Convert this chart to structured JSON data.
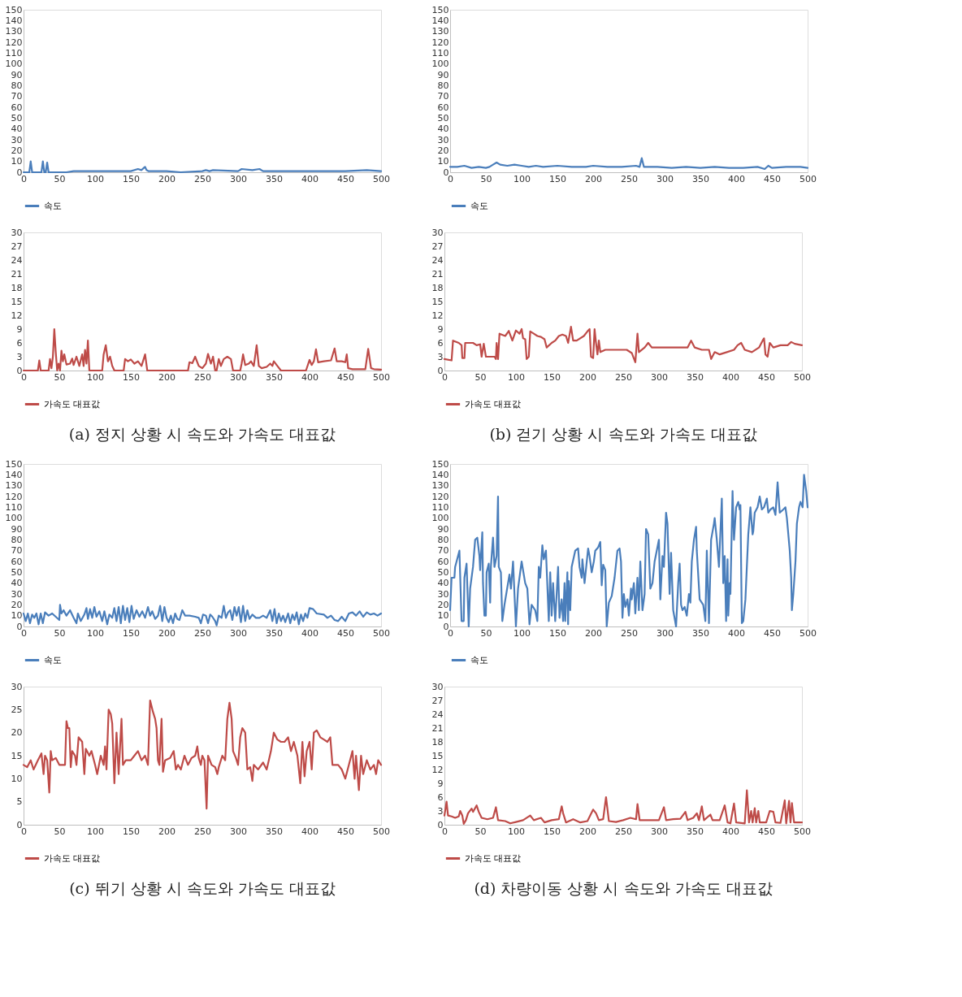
{
  "chart_data": [
    {
      "type": "line",
      "xlim": [
        0,
        500
      ],
      "xticks": [
        0,
        50,
        100,
        150,
        200,
        250,
        300,
        350,
        400,
        450,
        500
      ],
      "ylim": [
        0,
        150
      ],
      "yticks": [
        0,
        10,
        20,
        30,
        40,
        50,
        60,
        70,
        80,
        90,
        100,
        110,
        120,
        130,
        140,
        150
      ],
      "grid": false,
      "legend": "bottom",
      "series": [
        {
          "name": "속도",
          "color": "#4a7ebb",
          "x": [
            0,
            5,
            8,
            10,
            12,
            25,
            27,
            29,
            31,
            33,
            35,
            60,
            70,
            80,
            100,
            120,
            140,
            150,
            160,
            165,
            168,
            170,
            172,
            175,
            200,
            220,
            250,
            255,
            260,
            265,
            300,
            305,
            320,
            330,
            335,
            350,
            380,
            400,
            430,
            450,
            480,
            500
          ],
          "values": [
            0,
            0,
            0,
            10,
            0,
            0,
            10,
            0,
            0,
            9,
            0,
            0,
            1,
            1,
            1,
            1,
            1,
            1,
            3,
            2,
            4,
            5,
            2,
            1,
            1,
            0,
            1,
            2,
            1,
            2,
            1,
            3,
            2,
            3,
            1,
            1,
            1,
            1,
            1,
            1,
            2,
            1
          ]
        }
      ]
    },
    {
      "type": "line",
      "xlim": [
        0,
        500
      ],
      "xticks": [
        0,
        50,
        100,
        150,
        200,
        250,
        300,
        350,
        400,
        450,
        500
      ],
      "ylim": [
        0,
        30
      ],
      "yticks": [
        0,
        3,
        6,
        9,
        12,
        15,
        18,
        21,
        24,
        27,
        30
      ],
      "grid": false,
      "legend": "bottom",
      "annotations": [
        "(a) 정지 상황 시 속도와 가속도 대표값"
      ],
      "series": [
        {
          "name": "가속도 대표값",
          "color": "#be4b48",
          "x": [
            0,
            20,
            22,
            24,
            35,
            37,
            39,
            41,
            43,
            45,
            47,
            49,
            51,
            53,
            55,
            57,
            60,
            65,
            68,
            70,
            74,
            78,
            82,
            84,
            86,
            88,
            90,
            92,
            110,
            112,
            115,
            118,
            121,
            124,
            127,
            140,
            142,
            146,
            150,
            155,
            160,
            165,
            170,
            173,
            230,
            232,
            236,
            240,
            245,
            250,
            255,
            258,
            262,
            265,
            268,
            270,
            273,
            276,
            280,
            285,
            290,
            293,
            303,
            305,
            307,
            310,
            315,
            318,
            322,
            326,
            329,
            333,
            340,
            345,
            348,
            350,
            355,
            360,
            395,
            400,
            403,
            406,
            409,
            412,
            420,
            430,
            435,
            438,
            445,
            450,
            452,
            454,
            460,
            470,
            478,
            482,
            486,
            490,
            500
          ],
          "values": [
            0,
            0,
            2.2,
            0,
            0,
            2.5,
            0.5,
            3,
            9,
            4,
            0,
            1.5,
            0,
            4.3,
            2,
            3.5,
            1.3,
            1.5,
            2.6,
            1.2,
            3,
            1,
            3.5,
            1,
            4.5,
            1.5,
            6.5,
            0,
            0,
            3.5,
            5.5,
            2,
            3,
            1,
            0,
            0,
            2.5,
            2,
            2.4,
            1.5,
            2,
            1,
            3.5,
            0,
            0,
            1.8,
            1.6,
            3,
            1,
            0.5,
            1.5,
            3.6,
            1.5,
            3,
            0,
            0,
            2.5,
            1,
            2.5,
            3,
            2.5,
            0,
            0,
            1.5,
            3.5,
            1.2,
            1.5,
            2,
            1,
            5.5,
            1,
            0.5,
            0.8,
            1.5,
            1,
            2,
            1,
            0,
            0,
            2.3,
            1.2,
            2,
            4.6,
            1.8,
            2,
            2.2,
            4.8,
            2,
            2,
            1.8,
            3.5,
            0.5,
            0.3,
            0.3,
            0.3,
            4.7,
            0.5,
            0.3,
            0.2
          ]
        }
      ]
    },
    {
      "type": "line",
      "xlim": [
        0,
        500
      ],
      "xticks": [
        0,
        50,
        100,
        150,
        200,
        250,
        300,
        350,
        400,
        450,
        500
      ],
      "ylim": [
        0,
        150
      ],
      "yticks": [
        0,
        10,
        20,
        30,
        40,
        50,
        60,
        70,
        80,
        90,
        100,
        110,
        120,
        130,
        140,
        150
      ],
      "grid": false,
      "legend": "bottom",
      "series": [
        {
          "name": "속도",
          "color": "#4a7ebb",
          "x": [
            0,
            10,
            20,
            30,
            40,
            50,
            55,
            60,
            65,
            70,
            80,
            90,
            100,
            110,
            120,
            130,
            150,
            170,
            190,
            200,
            220,
            240,
            260,
            265,
            268,
            271,
            290,
            310,
            330,
            350,
            370,
            390,
            410,
            430,
            440,
            445,
            450,
            470,
            490,
            500
          ],
          "values": [
            5,
            5,
            6,
            4,
            5,
            4,
            5,
            7,
            9,
            7,
            6,
            7,
            6,
            5,
            6,
            5,
            6,
            5,
            5,
            6,
            5,
            5,
            6,
            5,
            13,
            5,
            5,
            4,
            5,
            4,
            5,
            4,
            4,
            5,
            3,
            6,
            4,
            5,
            5,
            4
          ]
        }
      ]
    },
    {
      "type": "line",
      "xlim": [
        0,
        500
      ],
      "xticks": [
        0,
        50,
        100,
        150,
        200,
        250,
        300,
        350,
        400,
        450,
        500
      ],
      "ylim": [
        0,
        30
      ],
      "yticks": [
        0,
        3,
        6,
        9,
        12,
        15,
        18,
        21,
        24,
        27,
        30
      ],
      "grid": false,
      "legend": "bottom",
      "annotations": [
        "(b) 걷기 상황 시 속도와 가속도 대표값"
      ],
      "series": [
        {
          "name": "가속도 대표값",
          "color": "#be4b48",
          "x": [
            0,
            10,
            12,
            20,
            24,
            25,
            28,
            29,
            40,
            45,
            50,
            52,
            55,
            58,
            70,
            72,
            73,
            75,
            77,
            85,
            90,
            95,
            100,
            105,
            108,
            110,
            113,
            115,
            118,
            120,
            125,
            130,
            135,
            140,
            143,
            150,
            155,
            160,
            165,
            170,
            173,
            177,
            180,
            185,
            195,
            200,
            203,
            205,
            208,
            210,
            212,
            214,
            216,
            218,
            225,
            235,
            245,
            255,
            262,
            267,
            270,
            272,
            280,
            285,
            290,
            300,
            310,
            320,
            330,
            340,
            345,
            350,
            360,
            370,
            373,
            378,
            385,
            395,
            405,
            410,
            415,
            420,
            430,
            440,
            445,
            447,
            449,
            452,
            455,
            460,
            470,
            480,
            485,
            490,
            500
          ],
          "values": [
            2.5,
            2.2,
            6.5,
            6,
            5.5,
            2.7,
            2.7,
            6,
            6,
            5.5,
            5.7,
            3,
            5.8,
            3,
            3,
            2.5,
            6,
            2.5,
            8,
            7.5,
            8.6,
            6.5,
            8.7,
            8,
            9,
            7,
            6.8,
            2.5,
            3,
            8.5,
            8,
            7.5,
            7.3,
            6.8,
            5,
            6,
            6.5,
            7.5,
            7.8,
            7.5,
            6,
            9.5,
            6.5,
            6.5,
            7.5,
            8.5,
            9,
            3,
            2.7,
            9,
            6,
            3.5,
            6.5,
            4,
            4.5,
            4.5,
            4.5,
            4.5,
            3.8,
            1.8,
            8,
            4,
            5,
            6,
            5,
            5,
            5,
            5,
            5,
            5,
            6.5,
            5,
            4.5,
            4.5,
            2.5,
            4,
            3.5,
            4,
            4.5,
            5.5,
            6,
            4.5,
            4,
            5,
            6.5,
            7,
            3.5,
            3,
            6,
            5,
            5.5,
            5.5,
            6.2,
            5.8,
            5.5
          ]
        }
      ]
    },
    {
      "type": "line",
      "xlim": [
        0,
        500
      ],
      "xticks": [
        0,
        50,
        100,
        150,
        200,
        250,
        300,
        350,
        400,
        450,
        500
      ],
      "ylim": [
        0,
        150
      ],
      "yticks": [
        0,
        10,
        20,
        30,
        40,
        50,
        60,
        70,
        80,
        90,
        100,
        110,
        120,
        130,
        140,
        150
      ],
      "grid": false,
      "legend": "bottom",
      "series": [
        {
          "name": "속도",
          "color": "#4a7ebb",
          "x": [
            0,
            3,
            6,
            9,
            12,
            15,
            18,
            21,
            24,
            27,
            30,
            35,
            40,
            45,
            50,
            51,
            53,
            56,
            60,
            65,
            70,
            74,
            76,
            80,
            85,
            88,
            90,
            93,
            96,
            99,
            102,
            106,
            110,
            113,
            117,
            120,
            124,
            127,
            130,
            133,
            136,
            139,
            142,
            145,
            148,
            151,
            154,
            158,
            162,
            166,
            170,
            174,
            177,
            180,
            184,
            188,
            191,
            194,
            197,
            200,
            203,
            206,
            209,
            212,
            215,
            218,
            222,
            226,
            232,
            240,
            245,
            248,
            251,
            255,
            258,
            261,
            264,
            268,
            270,
            273,
            277,
            280,
            283,
            286,
            289,
            292,
            295,
            298,
            301,
            304,
            307,
            310,
            313,
            316,
            320,
            325,
            330,
            335,
            340,
            345,
            348,
            351,
            354,
            357,
            360,
            363,
            366,
            370,
            373,
            376,
            379,
            382,
            385,
            388,
            391,
            394,
            397,
            400,
            405,
            410,
            420,
            425,
            430,
            435,
            440,
            445,
            450,
            455,
            460,
            465,
            470,
            475,
            480,
            485,
            490,
            495,
            500
          ],
          "values": [
            12,
            5,
            12,
            3,
            11,
            8,
            12,
            2,
            12,
            3,
            13,
            10,
            12,
            9,
            6,
            20,
            12,
            15,
            10,
            15,
            8,
            3,
            12,
            5,
            11,
            17,
            7,
            16,
            8,
            18,
            9,
            14,
            5,
            14,
            2,
            11,
            8,
            17,
            5,
            18,
            3,
            19,
            6,
            17,
            4,
            19,
            7,
            15,
            9,
            14,
            8,
            18,
            10,
            14,
            7,
            10,
            19,
            5,
            18,
            8,
            4,
            10,
            3,
            12,
            7,
            6,
            15,
            10,
            10,
            9,
            8,
            3,
            11,
            10,
            3,
            11,
            9,
            5,
            1,
            10,
            8,
            19,
            8,
            13,
            15,
            6,
            18,
            10,
            18,
            4,
            19,
            5,
            15,
            7,
            11,
            8,
            8,
            10,
            8,
            15,
            5,
            16,
            3,
            12,
            5,
            10,
            4,
            12,
            3,
            11,
            6,
            13,
            2,
            11,
            5,
            12,
            8,
            17,
            16,
            12,
            11,
            8,
            10,
            6,
            5,
            9,
            5,
            12,
            13,
            10,
            14,
            9,
            13,
            11,
            12,
            10,
            12
          ]
        }
      ]
    },
    {
      "type": "line",
      "xlim": [
        0,
        500
      ],
      "xticks": [
        0,
        50,
        100,
        150,
        200,
        250,
        300,
        350,
        400,
        450,
        500
      ],
      "ylim": [
        0,
        30
      ],
      "yticks": [
        0,
        5,
        10,
        15,
        20,
        25,
        30
      ],
      "grid": false,
      "legend": "bottom",
      "annotations": [
        "(c) 뛰기 상황 시 속도와 가속도 대표값"
      ],
      "series": [
        {
          "name": "가속도 대표값",
          "color": "#be4b48",
          "x": [
            0,
            5,
            10,
            14,
            20,
            25,
            28,
            30,
            33,
            36,
            38,
            40,
            45,
            50,
            55,
            58,
            60,
            62,
            64,
            66,
            68,
            72,
            74,
            77,
            82,
            85,
            87,
            92,
            95,
            100,
            103,
            108,
            112,
            114,
            116,
            119,
            122,
            124,
            127,
            130,
            133,
            137,
            139,
            143,
            150,
            155,
            160,
            165,
            170,
            174,
            177,
            181,
            184,
            186,
            188,
            190,
            193,
            195,
            198,
            205,
            210,
            213,
            216,
            220,
            225,
            230,
            235,
            240,
            243,
            245,
            248,
            250,
            253,
            256,
            258,
            263,
            268,
            271,
            273,
            278,
            282,
            285,
            288,
            291,
            293,
            297,
            300,
            303,
            306,
            310,
            313,
            317,
            320,
            322,
            328,
            335,
            340,
            343,
            346,
            350,
            355,
            360,
            365,
            370,
            374,
            378,
            383,
            387,
            390,
            393,
            396,
            400,
            403,
            406,
            410,
            415,
            420,
            425,
            429,
            432,
            440,
            445,
            450,
            455,
            460,
            463,
            465,
            469,
            472,
            475,
            480,
            485,
            490,
            493,
            496,
            500
          ],
          "values": [
            13,
            12.5,
            14,
            12,
            14,
            15.5,
            11,
            15,
            14,
            7,
            16,
            14,
            14.5,
            13,
            13,
            13,
            22.5,
            21,
            21,
            12.5,
            16,
            15,
            13,
            19,
            18,
            11,
            16.5,
            15,
            16,
            13,
            11,
            15,
            13,
            17,
            12,
            25,
            24,
            22,
            9,
            20,
            11,
            23,
            13,
            14,
            14,
            15,
            16,
            14,
            15,
            13,
            27,
            24.5,
            23,
            21,
            14,
            13,
            23,
            11.5,
            14,
            14.5,
            16,
            12,
            13,
            12,
            15,
            13,
            14.5,
            15,
            17,
            14.5,
            13,
            15,
            14,
            3.5,
            15,
            13,
            12.5,
            11,
            12.5,
            15,
            14,
            23,
            26.5,
            23,
            16,
            14.5,
            13,
            19,
            21,
            20,
            12,
            12.5,
            9.5,
            13,
            12,
            13.5,
            12,
            14,
            16,
            20,
            18.5,
            18,
            18,
            19,
            16,
            18,
            15,
            9,
            18,
            10.5,
            16,
            18,
            12,
            20,
            20.5,
            19,
            18.5,
            18,
            19,
            13,
            13,
            12,
            10,
            13,
            16,
            10,
            15,
            7.5,
            15,
            11,
            14,
            12,
            13,
            11,
            14,
            13
          ]
        }
      ]
    },
    {
      "type": "line",
      "xlim": [
        0,
        500
      ],
      "xticks": [
        0,
        50,
        100,
        150,
        200,
        250,
        300,
        350,
        400,
        450,
        500
      ],
      "ylim": [
        0,
        150
      ],
      "yticks": [
        0,
        10,
        20,
        30,
        40,
        50,
        60,
        70,
        80,
        90,
        100,
        110,
        120,
        130,
        140,
        150
      ],
      "grid": false,
      "legend": "bottom",
      "series": [
        {
          "name": "속도",
          "color": "#4a7ebb",
          "x": [
            0,
            2,
            6,
            7,
            13,
            16,
            19,
            20,
            23,
            26,
            28,
            32,
            35,
            38,
            41,
            42,
            45,
            46,
            48,
            50,
            51,
            54,
            56,
            57,
            60,
            62,
            65,
            67,
            68,
            71,
            73,
            76,
            78,
            83,
            85,
            88,
            92,
            95,
            100,
            105,
            108,
            111,
            114,
            119,
            122,
            124,
            126,
            129,
            131,
            134,
            138,
            140,
            142,
            144,
            147,
            151,
            153,
            156,
            158,
            160,
            161,
            164,
            165,
            166,
            168,
            170,
            175,
            179,
            181,
            184,
            185,
            188,
            193,
            195,
            198,
            201,
            203,
            207,
            210,
            212,
            214,
            217,
            219,
            222,
            226,
            230,
            234,
            237,
            239,
            241,
            243,
            245,
            248,
            250,
            253,
            254,
            257,
            259,
            262,
            264,
            266,
            269,
            272,
            274,
            277,
            280,
            283,
            286,
            289,
            292,
            294,
            297,
            299,
            302,
            304,
            307,
            309,
            312,
            316,
            319,
            321,
            323,
            325,
            328,
            331,
            334,
            336,
            338,
            341,
            344,
            345,
            349,
            354,
            357,
            359,
            362,
            365,
            369,
            370,
            373,
            376,
            380,
            382,
            384,
            386,
            388,
            389,
            391,
            392,
            395,
            397,
            400,
            403,
            405,
            406,
            408,
            410,
            413,
            417,
            420,
            423,
            424,
            426,
            430,
            433,
            436,
            439,
            443,
            445,
            448,
            452,
            455,
            458,
            461,
            466,
            469,
            471,
            475,
            477,
            478,
            480,
            483,
            485,
            488,
            490,
            493,
            495,
            498,
            500
          ],
          "values": [
            15,
            45,
            45,
            55,
            70,
            5,
            5,
            45,
            58,
            0,
            35,
            55,
            80,
            82,
            65,
            52,
            87,
            40,
            10,
            10,
            50,
            58,
            22,
            55,
            82,
            55,
            65,
            120,
            55,
            50,
            5,
            20,
            28,
            48,
            35,
            60,
            0,
            35,
            60,
            40,
            35,
            2,
            20,
            15,
            5,
            55,
            45,
            75,
            62,
            70,
            5,
            50,
            10,
            40,
            5,
            55,
            8,
            25,
            5,
            40,
            5,
            50,
            2,
            42,
            15,
            55,
            70,
            72,
            55,
            45,
            62,
            40,
            72,
            65,
            50,
            60,
            70,
            73,
            78,
            38,
            57,
            52,
            0,
            22,
            28,
            45,
            70,
            72,
            60,
            8,
            30,
            18,
            25,
            10,
            35,
            25,
            40,
            12,
            45,
            15,
            60,
            15,
            30,
            90,
            85,
            35,
            40,
            60,
            70,
            80,
            25,
            65,
            55,
            105,
            95,
            30,
            68,
            15,
            0,
            40,
            58,
            20,
            15,
            18,
            10,
            30,
            22,
            60,
            80,
            92,
            70,
            25,
            20,
            5,
            70,
            3,
            80,
            95,
            100,
            80,
            55,
            118,
            40,
            65,
            5,
            62,
            10,
            40,
            30,
            125,
            80,
            110,
            115,
            108,
            112,
            3,
            5,
            25,
            85,
            110,
            85,
            88,
            105,
            110,
            120,
            108,
            110,
            118,
            105,
            108,
            110,
            103,
            133,
            105,
            108,
            110,
            100,
            70,
            45,
            15,
            30,
            60,
            95,
            110,
            115,
            110,
            140,
            125,
            110
          ]
        }
      ]
    },
    {
      "type": "line",
      "xlim": [
        0,
        500
      ],
      "xticks": [
        0,
        50,
        100,
        150,
        200,
        250,
        300,
        350,
        400,
        450,
        500
      ],
      "ylim": [
        0,
        30
      ],
      "yticks": [
        0,
        3,
        6,
        9,
        12,
        15,
        18,
        21,
        24,
        27,
        30
      ],
      "grid": false,
      "legend": "bottom",
      "annotations": [
        "(d) 차량이동 상황 시 속도와 가속도 대표값"
      ],
      "series": [
        {
          "name": "가속도 대표값",
          "color": "#be4b48",
          "x": [
            0,
            3,
            5,
            10,
            15,
            20,
            22,
            25,
            27,
            30,
            33,
            38,
            40,
            45,
            48,
            52,
            60,
            68,
            72,
            75,
            85,
            92,
            100,
            110,
            120,
            125,
            135,
            140,
            150,
            160,
            164,
            166,
            170,
            180,
            190,
            200,
            208,
            212,
            216,
            222,
            226,
            230,
            240,
            250,
            260,
            268,
            270,
            273,
            285,
            300,
            307,
            310,
            320,
            330,
            337,
            340,
            348,
            353,
            356,
            360,
            363,
            372,
            375,
            385,
            392,
            396,
            400,
            405,
            408,
            420,
            423,
            426,
            429,
            431,
            434,
            436,
            439,
            441,
            450,
            455,
            460,
            463,
            470,
            476,
            478,
            482,
            484,
            486,
            489,
            495,
            500
          ],
          "values": [
            2,
            5,
            2,
            1.8,
            1.5,
            1.8,
            3,
            2,
            0.2,
            1,
            2.5,
            3.5,
            2.8,
            4.2,
            2.8,
            1.5,
            1.2,
            1.5,
            3.8,
            1,
            0.8,
            0.3,
            0.6,
            1,
            2,
            1,
            1.5,
            0.5,
            1,
            1.2,
            4,
            2.5,
            0.5,
            1.2,
            0.5,
            0.8,
            3.3,
            2.5,
            1,
            1.2,
            6,
            0.8,
            0.6,
            1,
            1.5,
            1.2,
            4.5,
            1,
            1,
            1,
            3.8,
            1,
            1.2,
            1.3,
            2.8,
            1,
            1.5,
            2.5,
            1,
            4,
            1,
            2.2,
            1,
            1,
            4.2,
            0.5,
            0.3,
            4.6,
            0.5,
            0.3,
            7.5,
            0.5,
            3,
            0.5,
            3.6,
            0.5,
            3,
            0.5,
            0.5,
            3,
            2.8,
            0.5,
            0.4,
            5.3,
            0.3,
            5.2,
            0.5,
            4.7,
            0.5,
            0.5,
            0.5
          ]
        }
      ]
    }
  ]
}
